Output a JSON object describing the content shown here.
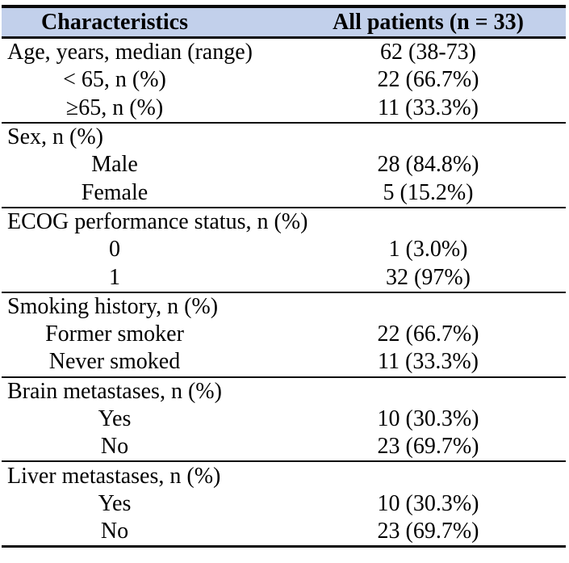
{
  "table": {
    "header": {
      "col1": "Characteristics",
      "col2": "All patients (n = 33)"
    },
    "colors": {
      "header_bg": "#c2d0eb",
      "rule": "#0a0a0a",
      "text": "#000000"
    },
    "sections": [
      {
        "rows": [
          {
            "label": "Age, years, median (range)",
            "value": "62 (38-73)",
            "align": "left"
          },
          {
            "label": "< 65, n (%)",
            "value": "22 (66.7%)",
            "align": "center"
          },
          {
            "label": "≥65, n (%)",
            "value": "11 (33.3%)",
            "align": "center"
          }
        ]
      },
      {
        "rows": [
          {
            "label": "Sex, n (%)",
            "value": "",
            "align": "left"
          },
          {
            "label": "Male",
            "value": "28 (84.8%)",
            "align": "center"
          },
          {
            "label": "Female",
            "value": "5 (15.2%)",
            "align": "center"
          }
        ]
      },
      {
        "rows": [
          {
            "label": "ECOG performance status, n (%)",
            "value": "",
            "align": "left"
          },
          {
            "label": "0",
            "value": "1 (3.0%)",
            "align": "center"
          },
          {
            "label": "1",
            "value": "32 (97%)",
            "align": "center"
          }
        ]
      },
      {
        "rows": [
          {
            "label": "Smoking history, n (%)",
            "value": "",
            "align": "left"
          },
          {
            "label": "Former smoker",
            "value": "22 (66.7%)",
            "align": "center"
          },
          {
            "label": "Never smoked",
            "value": "11 (33.3%)",
            "align": "center"
          }
        ]
      },
      {
        "rows": [
          {
            "label": "Brain metastases, n (%)",
            "value": "",
            "align": "left"
          },
          {
            "label": "Yes",
            "value": "10 (30.3%)",
            "align": "center"
          },
          {
            "label": "No",
            "value": "23 (69.7%)",
            "align": "center"
          }
        ]
      },
      {
        "rows": [
          {
            "label": "Liver metastases, n (%)",
            "value": "",
            "align": "left"
          },
          {
            "label": "Yes",
            "value": "10 (30.3%)",
            "align": "center"
          },
          {
            "label": "No",
            "value": "23 (69.7%)",
            "align": "center"
          }
        ]
      }
    ]
  }
}
